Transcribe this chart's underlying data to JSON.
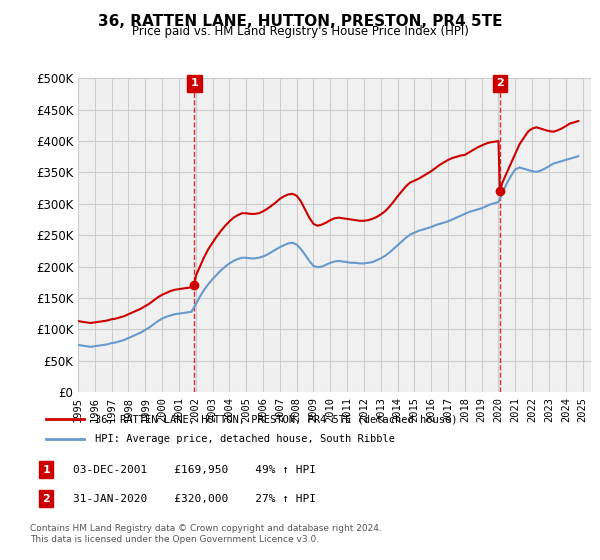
{
  "title": "36, RATTEN LANE, HUTTON, PRESTON, PR4 5TE",
  "subtitle": "Price paid vs. HM Land Registry's House Price Index (HPI)",
  "ylim": [
    0,
    500000
  ],
  "yticks": [
    0,
    50000,
    100000,
    150000,
    200000,
    250000,
    300000,
    350000,
    400000,
    450000,
    500000
  ],
  "xlim_start": 1995.0,
  "xlim_end": 2025.5,
  "sale1_date": 2001.92,
  "sale1_price": 169950,
  "sale1_label": "1",
  "sale1_info": "03-DEC-2001    £169,950    49% ↑ HPI",
  "sale2_date": 2020.08,
  "sale2_price": 320000,
  "sale2_label": "2",
  "sale2_info": "31-JAN-2020    £320,000    27% ↑ HPI",
  "legend_line1": "36, RATTEN LANE, HUTTON, PRESTON, PR4 5TE (detached house)",
  "legend_line2": "HPI: Average price, detached house, South Ribble",
  "footer1": "Contains HM Land Registry data © Crown copyright and database right 2024.",
  "footer2": "This data is licensed under the Open Government Licence v3.0.",
  "line_color_red": "#cc0000",
  "line_color_blue": "#6699cc",
  "vline_color": "#cc0000",
  "background_color": "#f5f5f5",
  "grid_color": "#cccccc",
  "marker_color_red": "#cc0000",
  "marker_box_color": "#cc0000",
  "hpi_red_data": {
    "x": [
      1995.0,
      1995.25,
      1995.5,
      1995.75,
      1996.0,
      1996.25,
      1996.5,
      1996.75,
      1997.0,
      1997.25,
      1997.5,
      1997.75,
      1998.0,
      1998.25,
      1998.5,
      1998.75,
      1999.0,
      1999.25,
      1999.5,
      1999.75,
      2000.0,
      2000.25,
      2000.5,
      2000.75,
      2001.0,
      2001.25,
      2001.5,
      2001.75,
      2001.92,
      2001.92,
      2002.0,
      2002.25,
      2002.5,
      2002.75,
      2003.0,
      2003.25,
      2003.5,
      2003.75,
      2004.0,
      2004.25,
      2004.5,
      2004.75,
      2005.0,
      2005.25,
      2005.5,
      2005.75,
      2006.0,
      2006.25,
      2006.5,
      2006.75,
      2007.0,
      2007.25,
      2007.5,
      2007.75,
      2008.0,
      2008.25,
      2008.5,
      2008.75,
      2009.0,
      2009.25,
      2009.5,
      2009.75,
      2010.0,
      2010.25,
      2010.5,
      2010.75,
      2011.0,
      2011.25,
      2011.5,
      2011.75,
      2012.0,
      2012.25,
      2012.5,
      2012.75,
      2013.0,
      2013.25,
      2013.5,
      2013.75,
      2014.0,
      2014.25,
      2014.5,
      2014.75,
      2015.0,
      2015.25,
      2015.5,
      2015.75,
      2016.0,
      2016.25,
      2016.5,
      2016.75,
      2017.0,
      2017.25,
      2017.5,
      2017.75,
      2018.0,
      2018.25,
      2018.5,
      2018.75,
      2019.0,
      2019.25,
      2019.5,
      2019.75,
      2020.0,
      2020.08,
      2020.08,
      2020.25,
      2020.5,
      2020.75,
      2021.0,
      2021.25,
      2021.5,
      2021.75,
      2022.0,
      2022.25,
      2022.5,
      2022.75,
      2023.0,
      2023.25,
      2023.5,
      2023.75,
      2024.0,
      2024.25,
      2024.5,
      2024.75
    ],
    "y_scale": [
      113000,
      112000,
      111000,
      110000,
      111000,
      112000,
      113000,
      114000,
      116000,
      117000,
      119000,
      121000,
      124000,
      127000,
      130000,
      133000,
      137000,
      141000,
      146000,
      151000,
      155000,
      158000,
      161000,
      163000,
      164000,
      165000,
      166000,
      167000,
      169950,
      169950,
      185000,
      200000,
      215000,
      228000,
      238000,
      248000,
      257000,
      265000,
      272000,
      278000,
      282000,
      285000,
      285000,
      284000,
      284000,
      285000,
      288000,
      292000,
      297000,
      302000,
      308000,
      312000,
      315000,
      316000,
      313000,
      304000,
      291000,
      278000,
      268000,
      265000,
      267000,
      270000,
      274000,
      277000,
      278000,
      277000,
      276000,
      275000,
      274000,
      273000,
      273000,
      274000,
      276000,
      279000,
      283000,
      288000,
      295000,
      303000,
      312000,
      320000,
      328000,
      334000,
      337000,
      340000,
      344000,
      348000,
      352000,
      357000,
      362000,
      366000,
      370000,
      373000,
      375000,
      377000,
      378000,
      382000,
      386000,
      390000,
      393000,
      396000,
      398000,
      399000,
      400000,
      320000,
      320000,
      335000,
      350000,
      365000,
      380000,
      395000,
      405000,
      415000,
      420000,
      422000,
      420000,
      418000,
      416000,
      415000,
      417000,
      420000,
      424000,
      428000,
      430000,
      432000
    ]
  },
  "hpi_blue_data": {
    "x": [
      1995.0,
      1995.25,
      1995.5,
      1995.75,
      1996.0,
      1996.25,
      1996.5,
      1996.75,
      1997.0,
      1997.25,
      1997.5,
      1997.75,
      1998.0,
      1998.25,
      1998.5,
      1998.75,
      1999.0,
      1999.25,
      1999.5,
      1999.75,
      2000.0,
      2000.25,
      2000.5,
      2000.75,
      2001.0,
      2001.25,
      2001.5,
      2001.75,
      2002.0,
      2002.25,
      2002.5,
      2002.75,
      2003.0,
      2003.25,
      2003.5,
      2003.75,
      2004.0,
      2004.25,
      2004.5,
      2004.75,
      2005.0,
      2005.25,
      2005.5,
      2005.75,
      2006.0,
      2006.25,
      2006.5,
      2006.75,
      2007.0,
      2007.25,
      2007.5,
      2007.75,
      2008.0,
      2008.25,
      2008.5,
      2008.75,
      2009.0,
      2009.25,
      2009.5,
      2009.75,
      2010.0,
      2010.25,
      2010.5,
      2010.75,
      2011.0,
      2011.25,
      2011.5,
      2011.75,
      2012.0,
      2012.25,
      2012.5,
      2012.75,
      2013.0,
      2013.25,
      2013.5,
      2013.75,
      2014.0,
      2014.25,
      2014.5,
      2014.75,
      2015.0,
      2015.25,
      2015.5,
      2015.75,
      2016.0,
      2016.25,
      2016.5,
      2016.75,
      2017.0,
      2017.25,
      2017.5,
      2017.75,
      2018.0,
      2018.25,
      2018.5,
      2018.75,
      2019.0,
      2019.25,
      2019.5,
      2019.75,
      2020.0,
      2020.25,
      2020.5,
      2020.75,
      2021.0,
      2021.25,
      2021.5,
      2021.75,
      2022.0,
      2022.25,
      2022.5,
      2022.75,
      2023.0,
      2023.25,
      2023.5,
      2023.75,
      2024.0,
      2024.25,
      2024.5,
      2024.75
    ],
    "y": [
      75000,
      74000,
      73000,
      72000,
      73000,
      74000,
      75000,
      76000,
      78000,
      79000,
      81000,
      83000,
      86000,
      89000,
      92000,
      95000,
      99000,
      103000,
      108000,
      113000,
      117000,
      120000,
      122000,
      124000,
      125000,
      126000,
      127000,
      128000,
      140000,
      152000,
      163000,
      172000,
      180000,
      187000,
      194000,
      200000,
      205000,
      209000,
      212000,
      214000,
      214000,
      213000,
      213000,
      214000,
      216000,
      219000,
      223000,
      227000,
      231000,
      234000,
      237000,
      238000,
      235000,
      228000,
      219000,
      209000,
      201000,
      199000,
      200000,
      203000,
      206000,
      208000,
      209000,
      208000,
      207000,
      206000,
      206000,
      205000,
      205000,
      206000,
      207000,
      210000,
      213000,
      217000,
      222000,
      228000,
      234000,
      240000,
      246000,
      251000,
      254000,
      257000,
      259000,
      261000,
      263000,
      266000,
      268000,
      270000,
      272000,
      275000,
      278000,
      281000,
      284000,
      287000,
      289000,
      291000,
      293000,
      296000,
      299000,
      301000,
      303000,
      318000,
      333000,
      345000,
      355000,
      358000,
      356000,
      354000,
      352000,
      351000,
      353000,
      356000,
      360000,
      364000,
      366000,
      368000,
      370000,
      372000,
      374000,
      376000
    ]
  },
  "x_tick_years": [
    1995,
    1996,
    1997,
    1998,
    1999,
    2000,
    2001,
    2002,
    2003,
    2004,
    2005,
    2006,
    2007,
    2008,
    2009,
    2010,
    2011,
    2012,
    2013,
    2014,
    2015,
    2016,
    2017,
    2018,
    2019,
    2020,
    2021,
    2022,
    2023,
    2024,
    2025
  ]
}
